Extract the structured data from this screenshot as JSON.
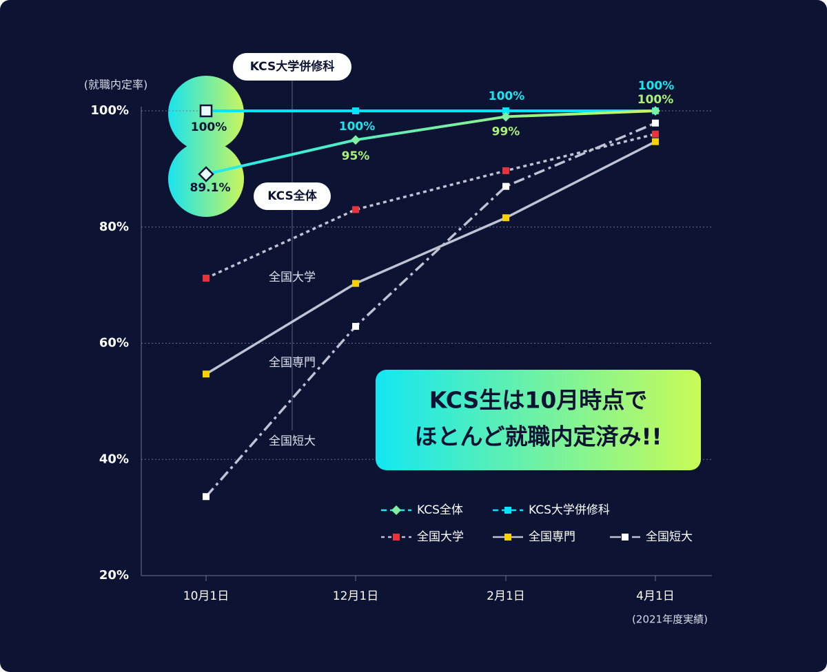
{
  "chart_data": {
    "type": "line",
    "y_label": "(就職内定率)",
    "note": "(2021年度実績)",
    "categories": [
      "10月1日",
      "12月1日",
      "2月1日",
      "4月1日"
    ],
    "ylim": [
      20,
      100
    ],
    "yticks": [
      {
        "value": 20,
        "label": "20%"
      },
      {
        "value": 40,
        "label": "40%"
      },
      {
        "value": 60,
        "label": "60%"
      },
      {
        "value": 80,
        "label": "80%"
      },
      {
        "value": 100,
        "label": "100%"
      }
    ],
    "grid": true,
    "legend": "lower right",
    "series": [
      {
        "name": "KCS全体",
        "color": "#7ef0a0",
        "line_color": "gradient",
        "line_style": "solid",
        "marker": "diamond",
        "values": [
          89.1,
          95,
          99,
          100
        ],
        "value_labels": [
          "89.1%",
          "95%",
          "99%",
          "100%"
        ]
      },
      {
        "name": "KCS大学併修科",
        "color": "#00e5ff",
        "line_color": "#00e5ff",
        "line_style": "solid",
        "marker": "square",
        "values": [
          100,
          100,
          100,
          100
        ],
        "value_labels": [
          "100%",
          "100%",
          "100%",
          "100%"
        ]
      },
      {
        "name": "全国大学",
        "color": "#e8323c",
        "line_color": "#bfc3d4",
        "line_style": "dotted",
        "marker": "square",
        "values": [
          71.2,
          83.0,
          89.7,
          96.0
        ]
      },
      {
        "name": "全国専門",
        "color": "#f5d300",
        "line_color": "#bfc3d4",
        "line_style": "solid",
        "marker": "square",
        "values": [
          54.7,
          70.3,
          81.6,
          94.7
        ]
      },
      {
        "name": "全国短大",
        "color": "#ffffff",
        "line_color": "#bfc3d4",
        "line_style": "dashdot",
        "marker": "square",
        "values": [
          33.6,
          62.9,
          87.0,
          97.9
        ]
      }
    ],
    "callouts": [
      "KCS大学併修科",
      "KCS全体"
    ],
    "line_labels": [
      "全国大学",
      "全国専門",
      "全国短大"
    ],
    "banner": [
      "KCS生は10月時点で",
      "ほとんど就職内定済み!!"
    ]
  }
}
